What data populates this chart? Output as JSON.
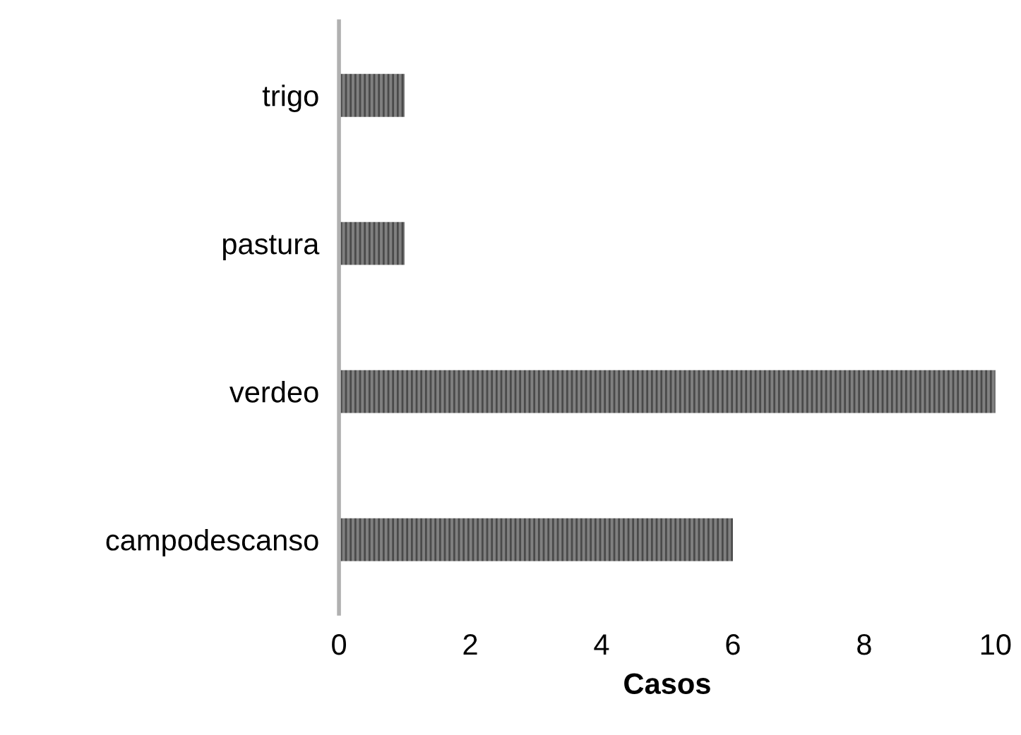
{
  "chart_data": {
    "type": "bar",
    "orientation": "horizontal",
    "xlabel": "Casos",
    "categories": [
      "trigo",
      "pastura",
      "verdeo",
      "campodescanso"
    ],
    "values": [
      1,
      1,
      10,
      6
    ],
    "color": "#808080",
    "xlim": [
      0,
      10
    ],
    "xticks": [
      0,
      2,
      4,
      6,
      8,
      10
    ],
    "grid": false,
    "legend": false
  }
}
